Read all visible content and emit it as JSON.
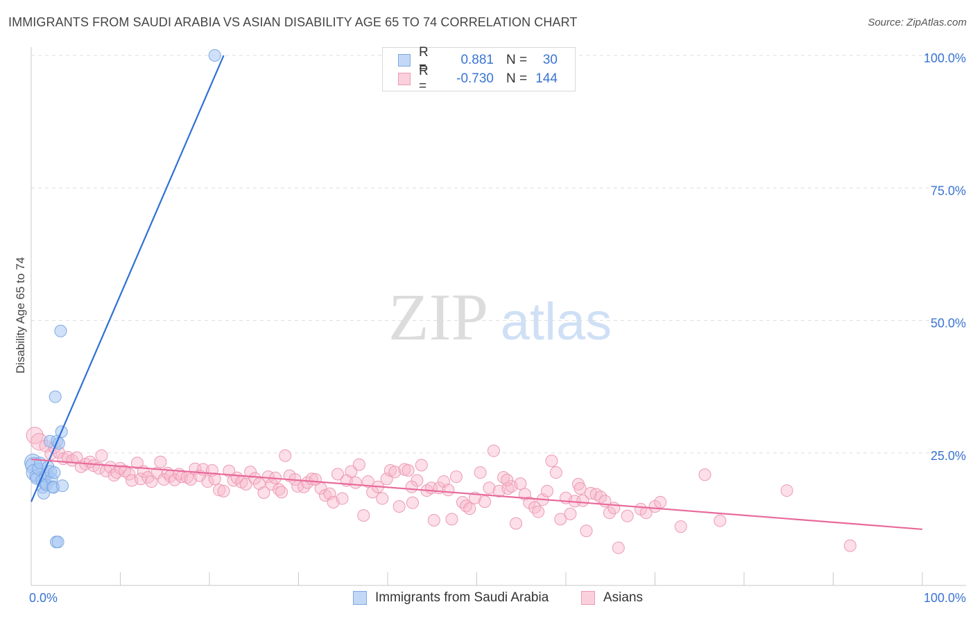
{
  "title": "IMMIGRANTS FROM SAUDI ARABIA VS ASIAN DISABILITY AGE 65 TO 74 CORRELATION CHART",
  "source": "Source: ZipAtlas.com",
  "watermark": {
    "zip": "ZIP",
    "atlas": "atlas"
  },
  "legend": {
    "rows": [
      {
        "r_label": "R =",
        "r_value": "0.881",
        "n_label": "N =",
        "n_value": "30",
        "color": "#a8c8f4"
      },
      {
        "r_label": "R =",
        "r_value": "-0.730",
        "n_label": "N =",
        "n_value": "144",
        "color": "#f8b8cc"
      }
    ]
  },
  "bottom_legend": [
    {
      "label": "Immigrants from Saudi Arabia",
      "color": "#a8c8f4"
    },
    {
      "label": "Asians",
      "color": "#f8b8cc"
    }
  ],
  "chart_data": {
    "type": "scatter",
    "title": "IMMIGRANTS FROM SAUDI ARABIA VS ASIAN DISABILITY AGE 65 TO 74 CORRELATION CHART",
    "xlabel": "",
    "ylabel": "Disability Age 65 to 74",
    "xlim": [
      0,
      100
    ],
    "ylim": [
      0,
      100
    ],
    "x_tick_labels": [
      "0.0%",
      "100.0%"
    ],
    "y_ticks": [
      25,
      50,
      75,
      100
    ],
    "y_tick_labels": [
      "25.0%",
      "50.0%",
      "75.0%",
      "100.0%"
    ],
    "grid": true,
    "legend_position": "top-center",
    "series": [
      {
        "name": "Immigrants from Saudi Arabia",
        "color": "#5b93e0",
        "fill": "#a8c8f4",
        "trend": {
          "x": [
            0,
            21.6
          ],
          "y": [
            15.8,
            100.0
          ]
        },
        "points": [
          [
            0.2,
            23.2
          ],
          [
            0.3,
            22.6
          ],
          [
            0.4,
            21.3
          ],
          [
            0.5,
            20.6
          ],
          [
            0.6,
            20.2
          ],
          [
            0.8,
            22.0
          ],
          [
            1.0,
            23.1
          ],
          [
            1.2,
            19.8
          ],
          [
            1.3,
            18.5
          ],
          [
            1.4,
            17.4
          ],
          [
            1.5,
            19.3
          ],
          [
            1.6,
            20.7
          ],
          [
            1.7,
            19.0
          ],
          [
            1.8,
            21.0
          ],
          [
            1.9,
            22.4
          ],
          [
            2.1,
            27.2
          ],
          [
            2.3,
            20.1
          ],
          [
            2.4,
            18.6
          ],
          [
            2.5,
            18.5
          ],
          [
            2.2,
            21.5
          ],
          [
            2.6,
            21.3
          ],
          [
            2.7,
            35.6
          ],
          [
            2.8,
            8.2
          ],
          [
            2.9,
            27.2
          ],
          [
            3.0,
            8.2
          ],
          [
            3.1,
            26.8
          ],
          [
            3.3,
            48.0
          ],
          [
            3.4,
            29.0
          ],
          [
            3.5,
            18.8
          ],
          [
            20.6,
            100.0
          ]
        ]
      },
      {
        "name": "Asians",
        "color": "#e8779c",
        "fill": "#f8b8cc",
        "trend": {
          "x": [
            0,
            100
          ],
          "y": [
            23.8,
            10.6
          ]
        },
        "points": [
          [
            0.4,
            28.3
          ],
          [
            0.9,
            27.1
          ],
          [
            1.6,
            26.3
          ],
          [
            2.2,
            24.8
          ],
          [
            2.6,
            26.0
          ],
          [
            3.1,
            25.1
          ],
          [
            3.6,
            23.9
          ],
          [
            4.1,
            24.2
          ],
          [
            4.6,
            23.6
          ],
          [
            5.1,
            24.1
          ],
          [
            5.6,
            22.4
          ],
          [
            6.1,
            22.9
          ],
          [
            6.6,
            23.3
          ],
          [
            7.0,
            22.6
          ],
          [
            7.6,
            22.1
          ],
          [
            7.9,
            24.5
          ],
          [
            8.4,
            21.6
          ],
          [
            8.9,
            22.3
          ],
          [
            9.3,
            20.8
          ],
          [
            9.6,
            21.3
          ],
          [
            10.0,
            22.1
          ],
          [
            10.5,
            21.6
          ],
          [
            11.0,
            21.0
          ],
          [
            11.3,
            19.8
          ],
          [
            11.9,
            23.1
          ],
          [
            12.3,
            20.1
          ],
          [
            12.6,
            21.5
          ],
          [
            13.1,
            20.4
          ],
          [
            13.5,
            19.6
          ],
          [
            14.1,
            21.2
          ],
          [
            14.5,
            23.3
          ],
          [
            14.9,
            20.0
          ],
          [
            15.3,
            21.2
          ],
          [
            15.6,
            20.6
          ],
          [
            16.1,
            19.9
          ],
          [
            16.6,
            21.0
          ],
          [
            16.9,
            20.5
          ],
          [
            17.5,
            20.4
          ],
          [
            17.9,
            20.0
          ],
          [
            18.4,
            22.0
          ],
          [
            18.9,
            20.7
          ],
          [
            19.3,
            21.9
          ],
          [
            19.8,
            19.6
          ],
          [
            20.3,
            21.7
          ],
          [
            20.6,
            20.1
          ],
          [
            21.1,
            18.0
          ],
          [
            21.6,
            17.8
          ],
          [
            22.2,
            21.6
          ],
          [
            22.7,
            19.8
          ],
          [
            23.1,
            20.3
          ],
          [
            23.6,
            19.5
          ],
          [
            24.1,
            19.1
          ],
          [
            24.6,
            21.4
          ],
          [
            25.1,
            20.2
          ],
          [
            25.6,
            19.2
          ],
          [
            26.1,
            17.5
          ],
          [
            26.6,
            20.5
          ],
          [
            27.0,
            19.1
          ],
          [
            27.4,
            20.3
          ],
          [
            27.8,
            18.1
          ],
          [
            28.1,
            17.6
          ],
          [
            28.5,
            24.5
          ],
          [
            29.0,
            20.7
          ],
          [
            29.6,
            20.0
          ],
          [
            29.9,
            18.7
          ],
          [
            30.6,
            18.6
          ],
          [
            31.0,
            19.4
          ],
          [
            31.5,
            20.1
          ],
          [
            31.9,
            20.0
          ],
          [
            32.5,
            18.3
          ],
          [
            33.0,
            17.0
          ],
          [
            33.5,
            17.3
          ],
          [
            33.9,
            15.7
          ],
          [
            34.4,
            21.0
          ],
          [
            34.9,
            16.4
          ],
          [
            35.4,
            19.8
          ],
          [
            35.9,
            21.5
          ],
          [
            36.4,
            19.4
          ],
          [
            36.8,
            22.8
          ],
          [
            37.3,
            13.2
          ],
          [
            37.8,
            19.6
          ],
          [
            38.3,
            17.6
          ],
          [
            38.9,
            18.6
          ],
          [
            39.4,
            16.4
          ],
          [
            39.9,
            20.1
          ],
          [
            40.3,
            21.7
          ],
          [
            40.8,
            21.4
          ],
          [
            41.3,
            14.9
          ],
          [
            41.9,
            21.9
          ],
          [
            42.3,
            21.7
          ],
          [
            42.8,
            15.6
          ],
          [
            43.3,
            19.8
          ],
          [
            43.8,
            22.7
          ],
          [
            44.4,
            17.9
          ],
          [
            44.9,
            18.4
          ],
          [
            45.2,
            12.3
          ],
          [
            45.8,
            18.4
          ],
          [
            46.3,
            19.6
          ],
          [
            46.8,
            18.0
          ],
          [
            47.2,
            12.5
          ],
          [
            47.7,
            20.5
          ],
          [
            48.4,
            15.7
          ],
          [
            48.8,
            15.0
          ],
          [
            49.2,
            14.5
          ],
          [
            49.8,
            16.5
          ],
          [
            50.4,
            21.3
          ],
          [
            50.9,
            15.8
          ],
          [
            51.4,
            18.4
          ],
          [
            51.9,
            25.4
          ],
          [
            52.5,
            17.8
          ],
          [
            53.0,
            20.4
          ],
          [
            53.5,
            18.3
          ],
          [
            53.9,
            18.7
          ],
          [
            54.4,
            11.7
          ],
          [
            54.9,
            19.2
          ],
          [
            55.4,
            17.2
          ],
          [
            55.9,
            15.6
          ],
          [
            56.5,
            14.7
          ],
          [
            56.9,
            13.9
          ],
          [
            57.4,
            16.2
          ],
          [
            57.9,
            17.8
          ],
          [
            58.4,
            23.5
          ],
          [
            58.9,
            21.3
          ],
          [
            59.4,
            12.5
          ],
          [
            60.0,
            16.5
          ],
          [
            60.5,
            13.5
          ],
          [
            61.0,
            15.9
          ],
          [
            61.4,
            19.1
          ],
          [
            61.9,
            16.0
          ],
          [
            62.3,
            10.3
          ],
          [
            62.8,
            17.4
          ],
          [
            63.4,
            17.2
          ],
          [
            63.9,
            16.7
          ],
          [
            64.4,
            15.9
          ],
          [
            64.9,
            13.7
          ],
          [
            65.4,
            14.6
          ],
          [
            65.9,
            7.1
          ],
          [
            66.9,
            13.1
          ],
          [
            68.4,
            14.4
          ],
          [
            69.0,
            13.7
          ],
          [
            70.0,
            14.9
          ],
          [
            72.9,
            11.1
          ],
          [
            75.6,
            20.9
          ],
          [
            77.3,
            12.2
          ],
          [
            84.8,
            17.9
          ],
          [
            91.9,
            7.5
          ],
          [
            70.6,
            15.7
          ],
          [
            61.6,
            18.3
          ],
          [
            53.4,
            19.9
          ],
          [
            42.7,
            18.6
          ]
        ]
      }
    ]
  }
}
